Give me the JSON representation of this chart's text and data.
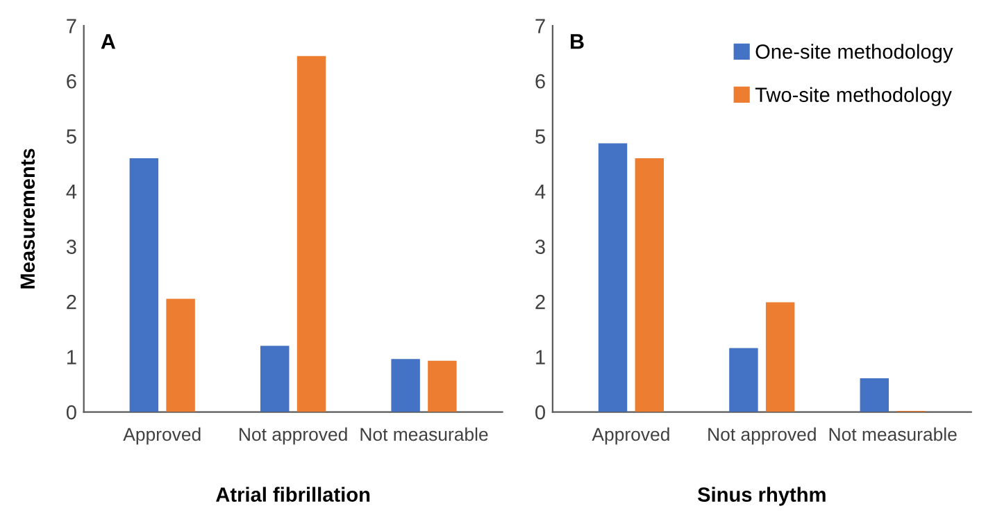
{
  "chart_data": [
    {
      "type": "bar",
      "xlabel": "Atrial fibrillation",
      "ylabel": "Measurements",
      "annotations": [
        "A"
      ],
      "categories": [
        "Approved",
        "Not approved",
        "Not measurable"
      ],
      "series": [
        {
          "color": "#4472c4",
          "values": [
            4.6,
            1.2,
            0.96
          ]
        },
        {
          "color": "#ed7d31",
          "values": [
            2.05,
            6.45,
            0.93
          ]
        }
      ],
      "ylim": [
        0,
        7
      ],
      "yticks": [
        0,
        1,
        2,
        3,
        4,
        5,
        6,
        7
      ],
      "grid": false,
      "legend": false
    },
    {
      "type": "bar",
      "xlabel": "Sinus rhythm",
      "annotations": [
        "B"
      ],
      "categories": [
        "Approved",
        "Not approved",
        "Not measurable"
      ],
      "series": [
        {
          "name": "One-site methodology",
          "color": "#4472c4",
          "values": [
            4.87,
            1.16,
            0.61
          ]
        },
        {
          "name": "Two-site methodology",
          "color": "#ed7d31",
          "values": [
            4.6,
            1.99,
            0.02
          ]
        }
      ],
      "ylim": [
        0,
        7
      ],
      "yticks": [
        0,
        1,
        2,
        3,
        4,
        5,
        6,
        7
      ],
      "grid": false,
      "legend": "top right"
    }
  ]
}
